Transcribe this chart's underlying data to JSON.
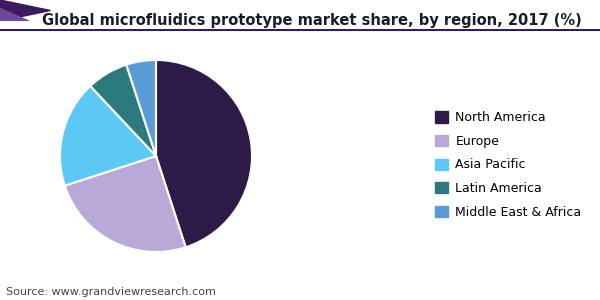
{
  "title": "Global microfluidics prototype market share, by region, 2017 (%)",
  "source": "Source: www.grandviewresearch.com",
  "labels": [
    "North America",
    "Europe",
    "Asia Pacific",
    "Latin America",
    "Middle East & Africa"
  ],
  "values": [
    45,
    25,
    18,
    7,
    5
  ],
  "colors": [
    "#2e1a47",
    "#b8a9d9",
    "#5bc8f5",
    "#2b7a7e",
    "#5b9bd5"
  ],
  "startangle": 90,
  "title_fontsize": 10.5,
  "legend_fontsize": 9,
  "source_fontsize": 8,
  "background_color": "#ffffff",
  "wedge_linewidth": 1.5,
  "wedge_edgecolor": "#ffffff"
}
